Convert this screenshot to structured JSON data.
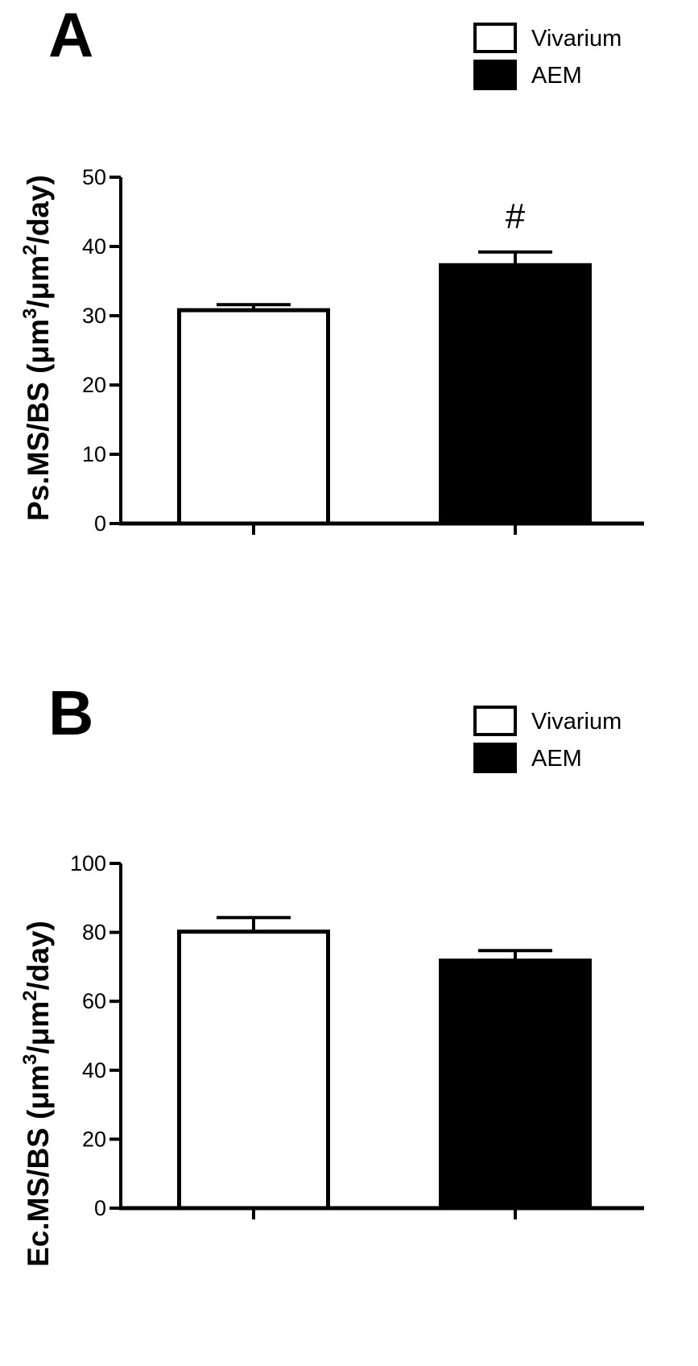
{
  "chart_data": [
    {
      "type": "bar",
      "panel": "A",
      "categories": [
        "Vivarium",
        "AEM"
      ],
      "series": [
        {
          "name": "Vivarium",
          "color": "#ffffff",
          "values": [
            30.8,
            null
          ],
          "errors": [
            0.8,
            null
          ]
        },
        {
          "name": "AEM",
          "color": "#000000",
          "values": [
            null,
            37.3
          ],
          "errors": [
            null,
            1.9
          ]
        }
      ],
      "values": [
        30.8,
        37.3
      ],
      "errors": [
        0.8,
        1.9
      ],
      "bar_colors": [
        "#ffffff",
        "#000000"
      ],
      "annotations": [
        {
          "category": "AEM",
          "text": "#"
        }
      ],
      "ylabel_parts": [
        "Ps.MS/BS (μm",
        "3",
        "/μm",
        "2",
        "/day)"
      ],
      "yticks": [
        "0",
        "10",
        "20",
        "30",
        "40",
        "50"
      ],
      "ylim": [
        0,
        50
      ],
      "grid": false,
      "legend": {
        "placement": "top-right",
        "entries": [
          "Vivarium",
          "AEM"
        ]
      }
    },
    {
      "type": "bar",
      "panel": "B",
      "categories": [
        "Vivarium",
        "AEM"
      ],
      "series": [
        {
          "name": "Vivarium",
          "color": "#ffffff",
          "values": [
            80.2,
            null
          ],
          "errors": [
            4.1,
            null
          ]
        },
        {
          "name": "AEM",
          "color": "#000000",
          "values": [
            null,
            71.8
          ],
          "errors": [
            null,
            2.9
          ]
        }
      ],
      "values": [
        80.2,
        71.8
      ],
      "errors": [
        4.1,
        2.9
      ],
      "bar_colors": [
        "#ffffff",
        "#000000"
      ],
      "annotations": [],
      "ylabel_parts": [
        "Ec.MS/BS (μm",
        "3",
        "/μm",
        "2",
        "/day)"
      ],
      "yticks": [
        "0",
        "20",
        "40",
        "60",
        "80",
        "100"
      ],
      "ylim": [
        0,
        100
      ],
      "grid": false,
      "legend": {
        "placement": "top-right",
        "entries": [
          "Vivarium",
          "AEM"
        ]
      }
    }
  ]
}
